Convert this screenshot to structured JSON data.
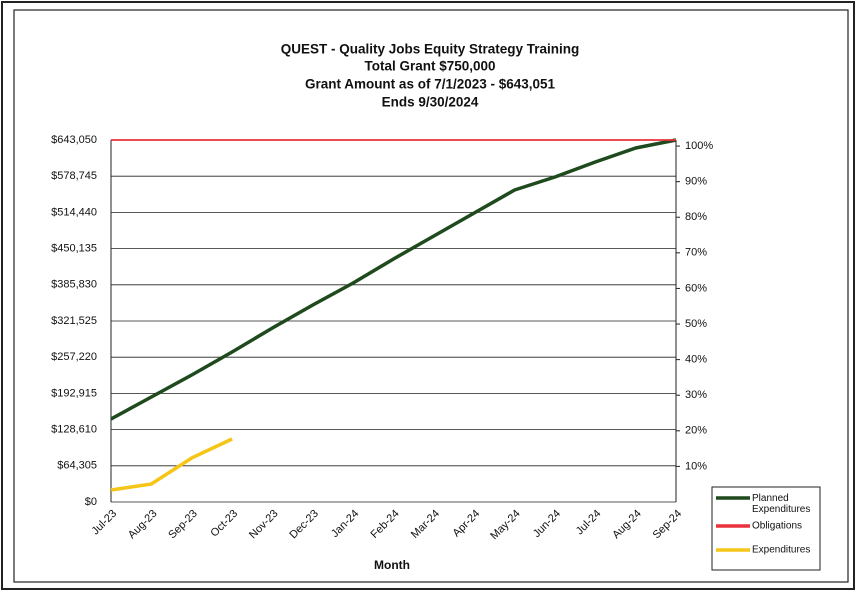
{
  "chart_data": {
    "type": "line",
    "title": [
      "QUEST - Quality Jobs Equity Strategy Training",
      "Total Grant  $750,000",
      "Grant Amount as of 7/1/2023 - $643,051",
      "Ends 9/30/2024"
    ],
    "x_label": "Month",
    "categories": [
      "Jul-23",
      "Aug-23",
      "Sep-23",
      "Oct-23",
      "Nov-23",
      "Dec-23",
      "Jan-24",
      "Feb-24",
      "Mar-24",
      "Apr-24",
      "May-24",
      "Jun-24",
      "Jul-24",
      "Aug-24",
      "Sep-24"
    ],
    "series": [
      {
        "name": "Planned Expenditures",
        "color": "#1e4a1e",
        "values": [
          147400,
          186500,
          225600,
          266500,
          309100,
          350000,
          389000,
          431700,
          472500,
          513400,
          554200,
          577300,
          604000,
          628800,
          643050
        ]
      },
      {
        "name": "Obligations",
        "color": "#e8323c",
        "values": [
          643050,
          643050,
          643050,
          643050,
          643050,
          643050,
          643050,
          643050,
          643050,
          643050,
          643050,
          643050,
          643050,
          643050,
          643050
        ]
      },
      {
        "name": "Expenditures",
        "color": "#f5c518",
        "values": [
          21300,
          32000,
          78200,
          111900,
          null,
          null,
          null,
          null,
          null,
          null,
          null,
          null,
          null,
          null,
          null
        ]
      }
    ],
    "ylim": [
      0,
      643050
    ],
    "yticks": [
      {
        "value": 0,
        "label": "$0"
      },
      {
        "value": 64305,
        "label": "$64,305"
      },
      {
        "value": 128610,
        "label": "$128,610"
      },
      {
        "value": 192915,
        "label": "$192,915"
      },
      {
        "value": 257220,
        "label": "$257,220"
      },
      {
        "value": 321525,
        "label": "$321,525"
      },
      {
        "value": 385830,
        "label": "$385,830"
      },
      {
        "value": 450135,
        "label": "$450,135"
      },
      {
        "value": 514440,
        "label": "$514,440"
      },
      {
        "value": 578745,
        "label": "$578,745"
      },
      {
        "value": 643050,
        "label": "$643,050"
      }
    ],
    "y2lim": [
      0,
      101.7
    ],
    "y2ticks": [
      {
        "value": 10,
        "label": "10%"
      },
      {
        "value": 20,
        "label": "20%"
      },
      {
        "value": 30,
        "label": "30%"
      },
      {
        "value": 40,
        "label": "40%"
      },
      {
        "value": 50,
        "label": "50%"
      },
      {
        "value": 60,
        "label": "60%"
      },
      {
        "value": 70,
        "label": "70%"
      },
      {
        "value": 80,
        "label": "80%"
      },
      {
        "value": 90,
        "label": "90%"
      },
      {
        "value": 100,
        "label": "100%"
      }
    ],
    "grid": true,
    "legend": "bottom-right"
  }
}
